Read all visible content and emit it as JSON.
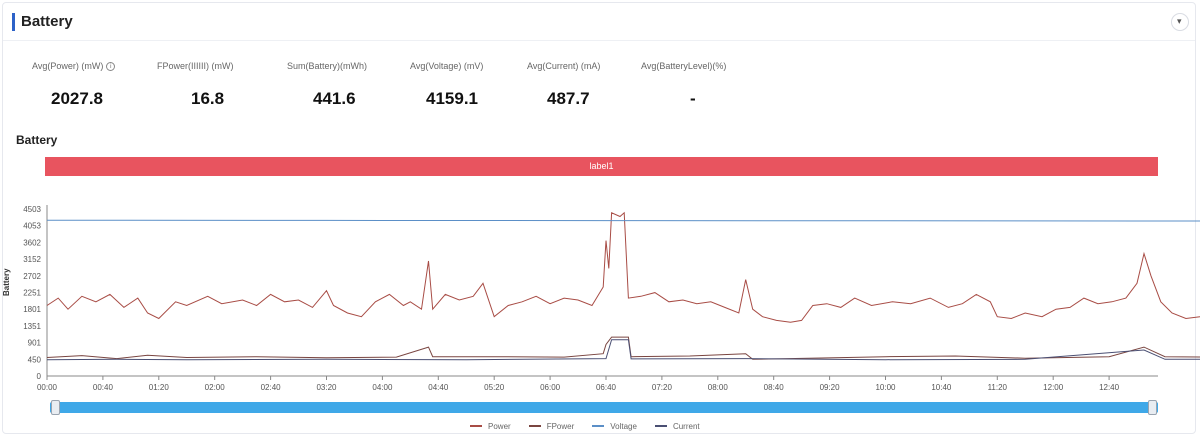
{
  "panel": {
    "title": "Battery",
    "collapse_icon": "▾"
  },
  "metrics": [
    {
      "label": "Avg(Power) (mW)",
      "value": "2027.8",
      "info": true
    },
    {
      "label": "FPower(IIIIII) (mW)",
      "value": "16.8"
    },
    {
      "label": "Sum(Battery)(mWh)",
      "value": "441.6"
    },
    {
      "label": "Avg(Voltage) (mV)",
      "value": "4159.1"
    },
    {
      "label": "Avg(Current) (mA)",
      "value": "487.7"
    },
    {
      "label": "Avg(BatteryLevel)(%)",
      "value": "-"
    }
  ],
  "section_title": "Battery",
  "label_bar": {
    "text": "label1",
    "color": "#e8545f"
  },
  "chart_data": {
    "type": "line",
    "ylabel": "Battery",
    "yticks": [
      "0",
      "450",
      "901",
      "1351",
      "1801",
      "2251",
      "2702",
      "3152",
      "3602",
      "4053",
      "4503"
    ],
    "ylim": [
      0,
      4503
    ],
    "xticks": [
      "00:00",
      "00:40",
      "01:20",
      "02:00",
      "02:40",
      "03:20",
      "04:00",
      "04:40",
      "05:20",
      "06:00",
      "06:40",
      "07:20",
      "08:00",
      "08:40",
      "09:20",
      "10:00",
      "10:40",
      "11:20",
      "12:00",
      "12:40"
    ],
    "xlim_minutes": [
      0,
      795
    ],
    "grid": false,
    "legend_position": "bottom",
    "series": [
      {
        "name": "Power",
        "color": "#a84c45",
        "points": [
          [
            0,
            1900
          ],
          [
            8,
            2100
          ],
          [
            15,
            1800
          ],
          [
            25,
            2150
          ],
          [
            35,
            2000
          ],
          [
            45,
            2200
          ],
          [
            55,
            1850
          ],
          [
            65,
            2100
          ],
          [
            72,
            1700
          ],
          [
            80,
            1550
          ],
          [
            92,
            2000
          ],
          [
            100,
            1900
          ],
          [
            115,
            2150
          ],
          [
            125,
            1950
          ],
          [
            140,
            2050
          ],
          [
            150,
            1900
          ],
          [
            160,
            2200
          ],
          [
            170,
            2000
          ],
          [
            180,
            2050
          ],
          [
            190,
            1850
          ],
          [
            200,
            2300
          ],
          [
            205,
            1900
          ],
          [
            215,
            1700
          ],
          [
            225,
            1600
          ],
          [
            235,
            2000
          ],
          [
            245,
            2200
          ],
          [
            255,
            1900
          ],
          [
            260,
            2000
          ],
          [
            268,
            1800
          ],
          [
            273,
            3100
          ],
          [
            276,
            1800
          ],
          [
            285,
            2200
          ],
          [
            295,
            2050
          ],
          [
            305,
            2150
          ],
          [
            312,
            2500
          ],
          [
            320,
            1600
          ],
          [
            330,
            1900
          ],
          [
            340,
            2000
          ],
          [
            350,
            2150
          ],
          [
            360,
            1950
          ],
          [
            370,
            2100
          ],
          [
            380,
            2050
          ],
          [
            390,
            1900
          ],
          [
            398,
            2400
          ],
          [
            400,
            3650
          ],
          [
            402,
            2900
          ],
          [
            404,
            4400
          ],
          [
            410,
            4300
          ],
          [
            413,
            4400
          ],
          [
            416,
            2100
          ],
          [
            425,
            2150
          ],
          [
            435,
            2250
          ],
          [
            445,
            2000
          ],
          [
            455,
            2050
          ],
          [
            465,
            1950
          ],
          [
            475,
            2000
          ],
          [
            485,
            1850
          ],
          [
            495,
            1700
          ],
          [
            500,
            2600
          ],
          [
            505,
            1800
          ],
          [
            512,
            1600
          ],
          [
            522,
            1500
          ],
          [
            532,
            1450
          ],
          [
            540,
            1500
          ],
          [
            548,
            1900
          ],
          [
            558,
            1950
          ],
          [
            568,
            1850
          ],
          [
            578,
            2100
          ],
          [
            590,
            1900
          ],
          [
            605,
            2000
          ],
          [
            618,
            1950
          ],
          [
            632,
            2100
          ],
          [
            645,
            1850
          ],
          [
            655,
            1950
          ],
          [
            665,
            2200
          ],
          [
            675,
            2000
          ],
          [
            680,
            1600
          ],
          [
            690,
            1550
          ],
          [
            700,
            1700
          ],
          [
            712,
            1600
          ],
          [
            722,
            1800
          ],
          [
            732,
            1850
          ],
          [
            742,
            2100
          ],
          [
            752,
            1950
          ],
          [
            762,
            2000
          ],
          [
            772,
            2100
          ],
          [
            780,
            2500
          ],
          [
            785,
            3300
          ],
          [
            790,
            2700
          ],
          [
            797,
            2000
          ],
          [
            805,
            1700
          ],
          [
            815,
            1550
          ],
          [
            825,
            1600
          ],
          [
            835,
            1550
          ],
          [
            842,
            1900
          ],
          [
            850,
            2100
          ],
          [
            860,
            1900
          ],
          [
            872,
            2000
          ],
          [
            882,
            2250
          ],
          [
            892,
            2350
          ],
          [
            905,
            2500
          ],
          [
            915,
            2650
          ],
          [
            925,
            2550
          ],
          [
            935,
            2400
          ],
          [
            945,
            2500
          ],
          [
            952,
            2000
          ],
          [
            955,
            2650
          ]
        ]
      },
      {
        "name": "FPower",
        "color": "#7a4540",
        "points": [
          [
            0,
            500
          ],
          [
            25,
            550
          ],
          [
            50,
            470
          ],
          [
            72,
            560
          ],
          [
            100,
            500
          ],
          [
            150,
            520
          ],
          [
            200,
            490
          ],
          [
            250,
            510
          ],
          [
            273,
            780
          ],
          [
            276,
            520
          ],
          [
            320,
            520
          ],
          [
            370,
            510
          ],
          [
            398,
            600
          ],
          [
            400,
            850
          ],
          [
            404,
            1050
          ],
          [
            416,
            1050
          ],
          [
            418,
            520
          ],
          [
            460,
            540
          ],
          [
            500,
            600
          ],
          [
            505,
            450
          ],
          [
            545,
            480
          ],
          [
            600,
            520
          ],
          [
            650,
            540
          ],
          [
            700,
            480
          ],
          [
            760,
            520
          ],
          [
            785,
            780
          ],
          [
            800,
            520
          ],
          [
            860,
            500
          ],
          [
            905,
            560
          ],
          [
            935,
            600
          ],
          [
            955,
            560
          ]
        ]
      },
      {
        "name": "Voltage",
        "color": "#5b8fc7",
        "points": [
          [
            0,
            4200
          ],
          [
            200,
            4195
          ],
          [
            400,
            4190
          ],
          [
            600,
            4185
          ],
          [
            800,
            4180
          ],
          [
            955,
            4180
          ]
        ]
      },
      {
        "name": "Current",
        "color": "#4a4f73",
        "points": [
          [
            0,
            440
          ],
          [
            50,
            450
          ],
          [
            100,
            440
          ],
          [
            200,
            450
          ],
          [
            300,
            440
          ],
          [
            400,
            470
          ],
          [
            404,
            980
          ],
          [
            416,
            980
          ],
          [
            418,
            460
          ],
          [
            500,
            470
          ],
          [
            600,
            440
          ],
          [
            700,
            450
          ],
          [
            785,
            700
          ],
          [
            800,
            450
          ],
          [
            955,
            460
          ]
        ]
      }
    ]
  },
  "legend": [
    {
      "label": "Power",
      "color": "#a84c45"
    },
    {
      "label": "FPower",
      "color": "#7a4540"
    },
    {
      "label": "Voltage",
      "color": "#5b8fc7"
    },
    {
      "label": "Current",
      "color": "#4a4f73"
    }
  ]
}
